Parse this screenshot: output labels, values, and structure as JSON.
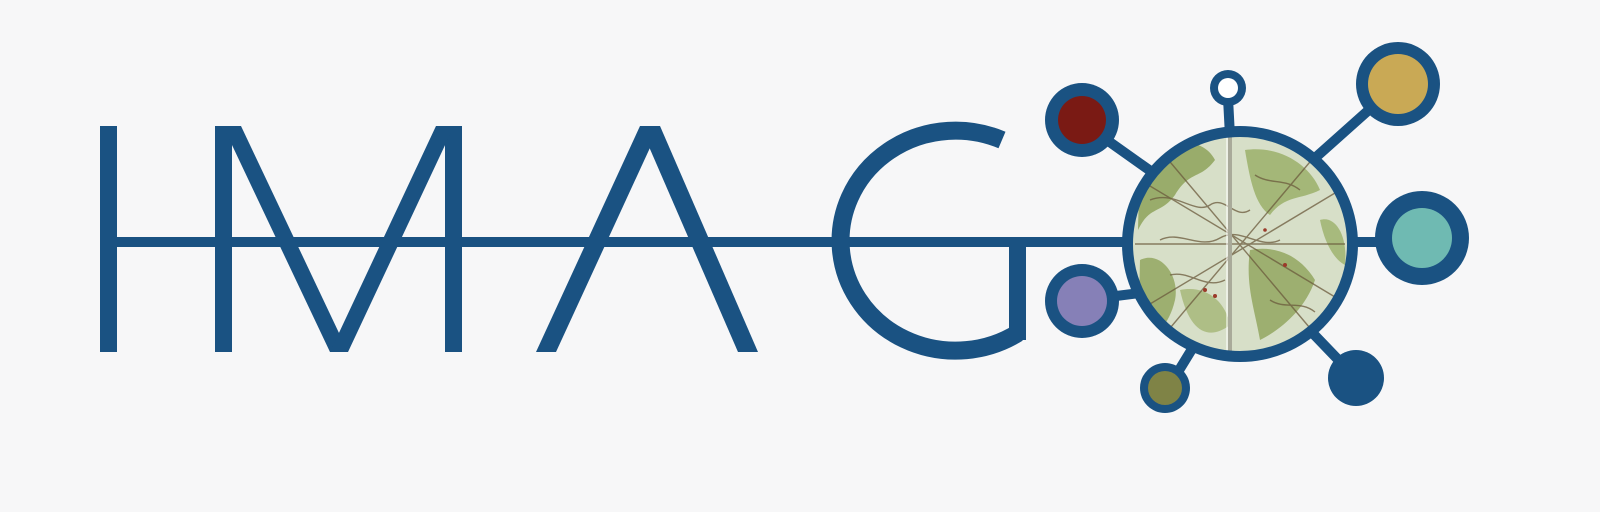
{
  "logo": {
    "wordmark": "IMAGO",
    "colors": {
      "primary_blue": "#1a5282",
      "background": "#f7f7f8",
      "dot_red": "#7a1a14",
      "dot_gold": "#c9a955",
      "dot_teal": "#6fbab2",
      "dot_purple": "#8680b7",
      "dot_olive": "#7f8346",
      "dot_navy": "#1a5282",
      "dot_white": "#ffffff",
      "map_parchment": "#d7dfc8",
      "map_green": "#8ea35a",
      "map_ink": "#6b5a3c"
    },
    "icons": [
      "world-map-globe-icon",
      "network-node-icon"
    ]
  }
}
